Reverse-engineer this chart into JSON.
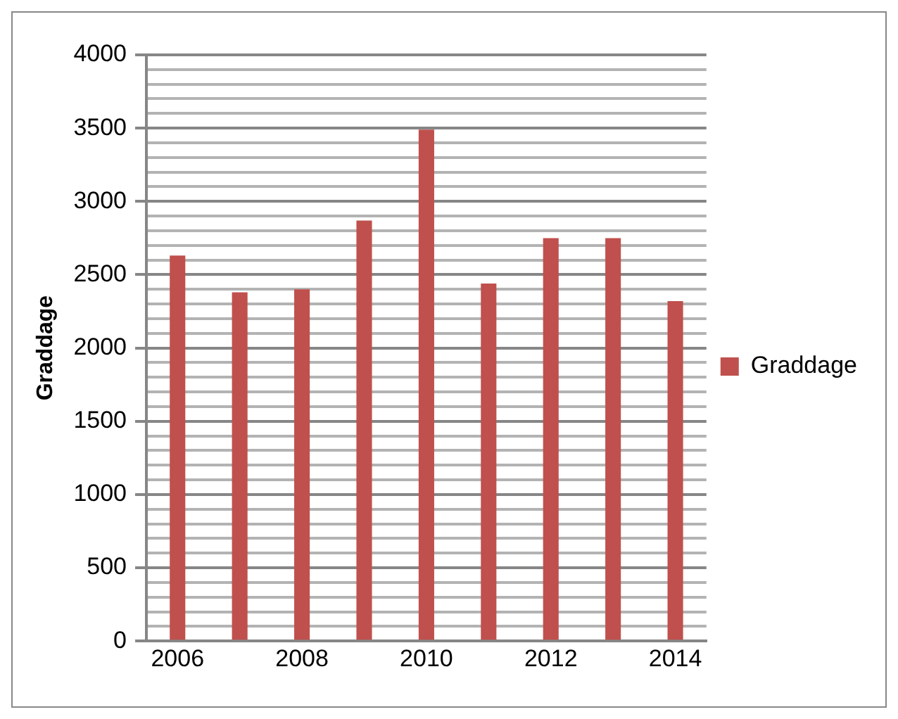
{
  "chart_data": {
    "type": "bar",
    "ylabel": "Graddage",
    "categories": [
      "2006",
      null,
      "2008",
      null,
      "2010",
      null,
      "2012",
      null,
      "2014"
    ],
    "series": [
      {
        "name": "Graddage",
        "color": "#c0504d",
        "values": [
          2630,
          2380,
          2400,
          2870,
          3490,
          2440,
          2750,
          2750,
          2320
        ]
      }
    ],
    "ylim": [
      0,
      4000
    ],
    "yticks": [
      0,
      {
        "value": 100,
        "label": null
      },
      {
        "value": 200,
        "label": null
      },
      {
        "value": 300,
        "label": null
      },
      {
        "value": 400,
        "label": null
      },
      500,
      {
        "value": 600,
        "label": null
      },
      {
        "value": 700,
        "label": null
      },
      {
        "value": 800,
        "label": null
      },
      {
        "value": 900,
        "label": null
      },
      1000,
      {
        "value": 1100,
        "label": null
      },
      {
        "value": 1200,
        "label": null
      },
      {
        "value": 1300,
        "label": null
      },
      {
        "value": 1400,
        "label": null
      },
      1500,
      {
        "value": 1600,
        "label": null
      },
      {
        "value": 1700,
        "label": null
      },
      {
        "value": 1800,
        "label": null
      },
      {
        "value": 1900,
        "label": null
      },
      2000,
      {
        "value": 2100,
        "label": null
      },
      {
        "value": 2200,
        "label": null
      },
      {
        "value": 2300,
        "label": null
      },
      {
        "value": 2400,
        "label": null
      },
      2500,
      {
        "value": 2600,
        "label": null
      },
      {
        "value": 2700,
        "label": null
      },
      {
        "value": 2800,
        "label": null
      },
      {
        "value": 2900,
        "label": null
      },
      3000,
      {
        "value": 3100,
        "label": null
      },
      {
        "value": 3200,
        "label": null
      },
      {
        "value": 3300,
        "label": null
      },
      {
        "value": 3400,
        "label": null
      },
      3500,
      {
        "value": 3600,
        "label": null
      },
      {
        "value": 3700,
        "label": null
      },
      {
        "value": 3800,
        "label": null
      },
      {
        "value": 3900,
        "label": null
      },
      4000
    ],
    "grid": "y",
    "legend": "right"
  }
}
